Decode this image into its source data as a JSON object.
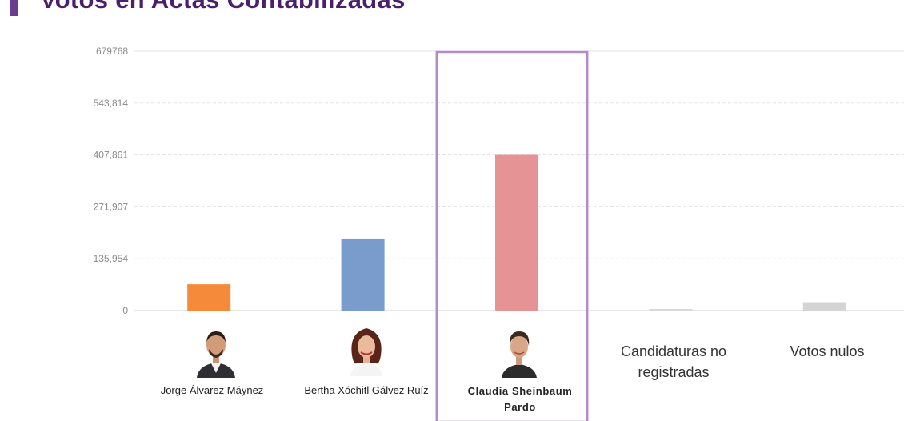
{
  "header": {
    "title": "Votos en Actas Contabilizadas"
  },
  "colors": {
    "accent": "#6a3d8f",
    "highlight": "#b48ccc"
  },
  "chart_data": {
    "type": "bar",
    "categories": [
      "Jorge Álvarez Máynez",
      "Bertha Xóchitl Gálvez Ruíz",
      "Claudia Sheinbaum Pardo",
      "Candidaturas no registradas",
      "Votos nulos"
    ],
    "values": [
      69000,
      189000,
      408000,
      2000,
      22000
    ],
    "colors": [
      "#f58a3a",
      "#7a9ccc",
      "#e59394",
      "#d8d8d8",
      "#d4d4d4"
    ],
    "highlighted": "Claudia Sheinbaum Pardo",
    "ylim": [
      0,
      679768
    ],
    "yticks": [
      "0",
      "135,954",
      "271,907",
      "407,861",
      "543,814",
      "679768"
    ],
    "ytick_values": [
      0,
      135954,
      271907,
      407861,
      543814,
      679768
    ],
    "grid": true
  },
  "candidates": [
    {
      "line1": "Jorge Álvarez Máynez",
      "line2": ""
    },
    {
      "line1": "Bertha Xóchitl Gálvez Ruíz",
      "line2": ""
    },
    {
      "line1": "Claudia Sheinbaum",
      "line2": "Pardo"
    },
    {
      "line1": "Candidaturas no",
      "line2": "registradas"
    },
    {
      "line1": "Votos nulos",
      "line2": ""
    }
  ],
  "icons": [
    "avatar-alvarez-icon",
    "avatar-galvez-icon",
    "avatar-sheinbaum-icon"
  ]
}
